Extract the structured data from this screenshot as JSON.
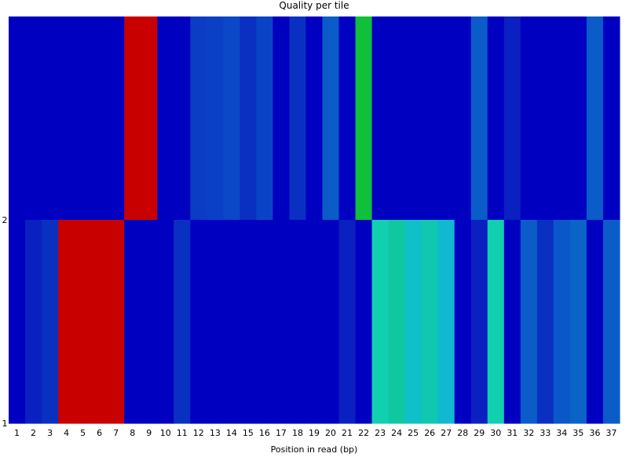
{
  "chart_data": {
    "type": "heatmap",
    "title": "Quality per tile",
    "xlabel": "Position in read (bp)",
    "ylabel": "",
    "x": [
      "1",
      "2",
      "3",
      "4",
      "5",
      "6",
      "7",
      "8",
      "9",
      "10",
      "11",
      "12",
      "13",
      "14",
      "15",
      "16",
      "17",
      "18",
      "19",
      "20",
      "21",
      "22",
      "23",
      "24",
      "25",
      "26",
      "27",
      "28",
      "29",
      "30",
      "31",
      "32",
      "33",
      "34",
      "35",
      "36",
      "37"
    ],
    "y": [
      "2",
      "1"
    ],
    "color_scale": "blue (low deviation) → cyan → green → red (high deviation)",
    "cells": [
      {
        "tile": "2",
        "colors": [
          "#0000c0",
          "#0000c0",
          "#0000c0",
          "#0000c0",
          "#0000c0",
          "#0000c0",
          "#0000c0",
          "#c80000",
          "#c80000",
          "#0000c0",
          "#0000c0",
          "#0a3cc4",
          "#0a40c6",
          "#0a48c8",
          "#0a30c2",
          "#0a44c6",
          "#0000c0",
          "#0a30c2",
          "#0000c0",
          "#0a5cc8",
          "#0000c0",
          "#10c03a",
          "#0000c0",
          "#0000c0",
          "#0000c0",
          "#0000c0",
          "#0000c0",
          "#0000c0",
          "#0a5cc8",
          "#0000c0",
          "#0a20c0",
          "#0000c0",
          "#0000c0",
          "#0000c0",
          "#0000c0",
          "#0a5cc8",
          "#0000c0"
        ]
      },
      {
        "tile": "1",
        "colors": [
          "#0000c0",
          "#0a20c0",
          "#0a30c2",
          "#c80000",
          "#c80000",
          "#c80000",
          "#c80000",
          "#0000c0",
          "#0000c0",
          "#0000c0",
          "#0a30c2",
          "#0000c0",
          "#0000c0",
          "#0000c0",
          "#0000c0",
          "#0000c0",
          "#0000c0",
          "#0000c0",
          "#0000c0",
          "#0000c0",
          "#0a20c0",
          "#0000c0",
          "#10d0b0",
          "#10c8a0",
          "#10c0c8",
          "#10c8b0",
          "#10b8d0",
          "#0000c0",
          "#0a20c0",
          "#10d0b0",
          "#0000c0",
          "#0a5cc8",
          "#0a30c2",
          "#0a58c8",
          "#0a64c8",
          "#0000c0",
          "#0a5cc8"
        ]
      }
    ]
  }
}
